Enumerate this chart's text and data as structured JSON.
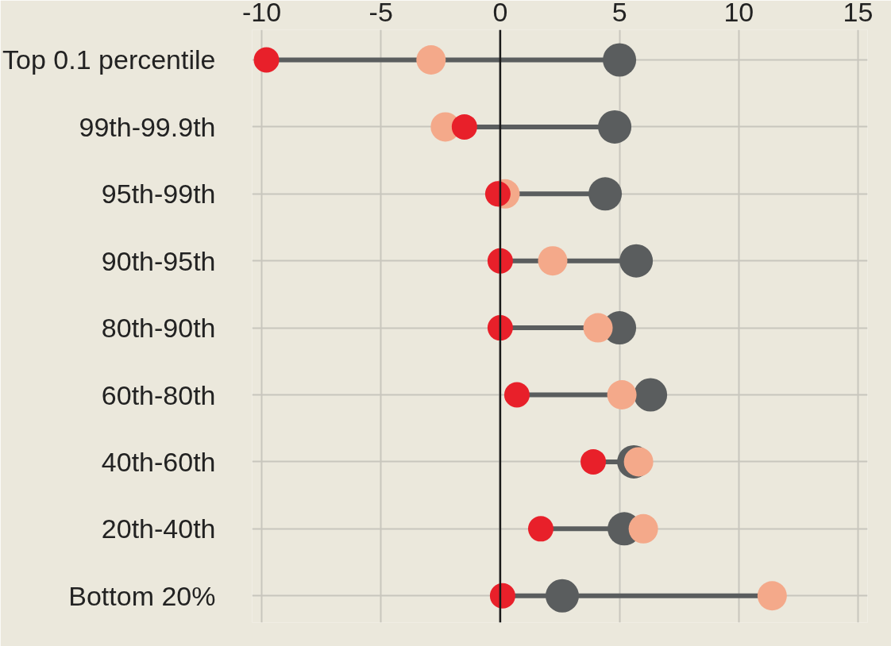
{
  "chart_data": {
    "type": "scatter",
    "marker": "circle",
    "grid": true,
    "categories": [
      "Top 0.1 percentile",
      "99th-99.9th",
      "95th-99th",
      "90th-95th",
      "80th-90th",
      "60th-80th",
      "40th-60th",
      "20th-40th",
      "Bottom 20%"
    ],
    "orientation": "horizontal",
    "xlim": [
      -10.4,
      15.4
    ],
    "xticks": [
      -10,
      -5,
      0,
      5,
      10,
      15
    ],
    "ref_lines": [
      {
        "axis": "x",
        "value": 0,
        "color": "#1a1a1a"
      }
    ],
    "series": [
      {
        "color": "#5a5d5e",
        "values": [
          5.0,
          4.8,
          4.4,
          5.7,
          5.0,
          6.3,
          5.6,
          5.2,
          2.6
        ]
      },
      {
        "color": "#f4a98a",
        "values": [
          -2.9,
          -2.3,
          0.2,
          2.2,
          4.1,
          5.1,
          5.8,
          6.0,
          11.4
        ]
      },
      {
        "color": "#e8202a",
        "values": [
          -9.8,
          -1.5,
          -0.1,
          0,
          0,
          0.7,
          3.9,
          1.7,
          0.1
        ]
      }
    ]
  }
}
